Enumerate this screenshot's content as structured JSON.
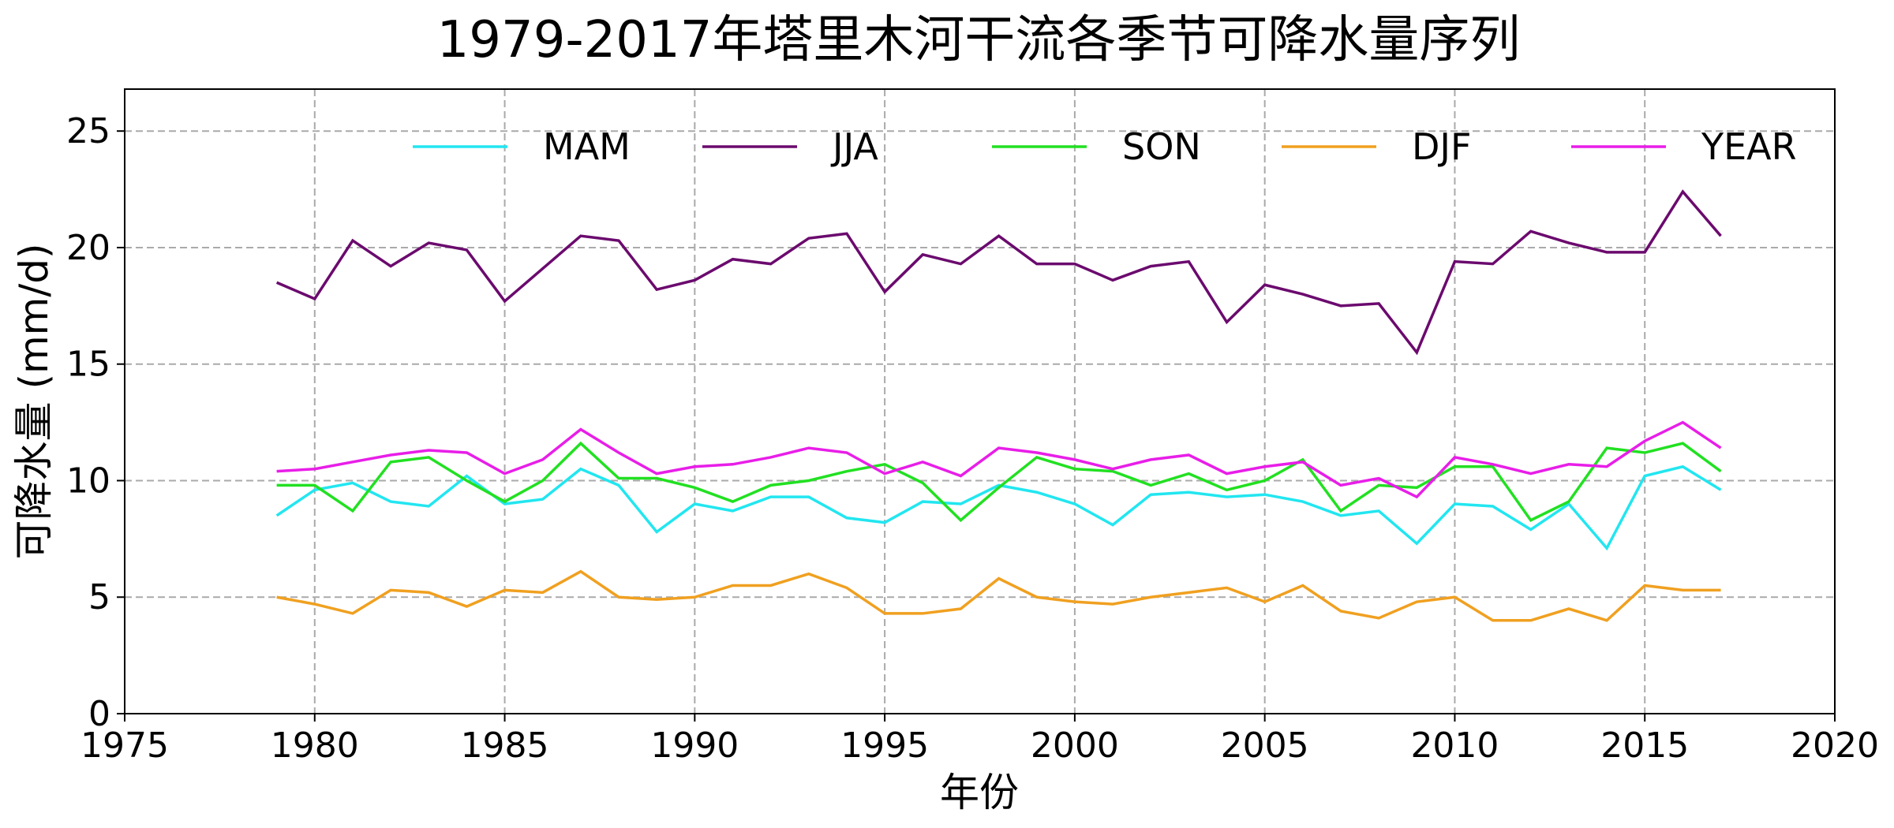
{
  "chart_data": {
    "type": "line",
    "title": "1979-2017年塔里木河干流各季节可降水量序列",
    "xlabel": "年份",
    "ylabel": "可降水量 (mm/d)",
    "xlim": [
      1975,
      2020
    ],
    "ylim": [
      0,
      26.8
    ],
    "xticks": [
      1975,
      1980,
      1985,
      1990,
      1995,
      2000,
      2005,
      2010,
      2015,
      2020
    ],
    "yticks": [
      0,
      5,
      10,
      15,
      20,
      25
    ],
    "grid": true,
    "legend_position": "top",
    "x": [
      1979,
      1980,
      1981,
      1982,
      1983,
      1984,
      1985,
      1986,
      1987,
      1988,
      1989,
      1990,
      1991,
      1992,
      1993,
      1994,
      1995,
      1996,
      1997,
      1998,
      1999,
      2000,
      2001,
      2002,
      2003,
      2004,
      2005,
      2006,
      2007,
      2008,
      2009,
      2010,
      2011,
      2012,
      2013,
      2014,
      2015,
      2016,
      2017
    ],
    "series": [
      {
        "name": "MAM",
        "color": "#22e6f0",
        "values": [
          8.5,
          9.6,
          9.9,
          9.1,
          8.9,
          10.2,
          9.0,
          9.2,
          10.5,
          9.8,
          7.8,
          9.0,
          8.7,
          9.3,
          9.3,
          8.4,
          8.2,
          9.1,
          9.0,
          9.8,
          9.5,
          9.0,
          8.1,
          9.4,
          9.5,
          9.3,
          9.4,
          9.1,
          8.5,
          8.7,
          7.3,
          9.0,
          8.9,
          7.9,
          9.0,
          7.1,
          10.2,
          10.6,
          9.6
        ]
      },
      {
        "name": "JJA",
        "color": "#6b0a6e",
        "values": [
          18.5,
          17.8,
          20.3,
          19.2,
          20.2,
          19.9,
          17.7,
          19.1,
          20.5,
          20.3,
          18.2,
          18.6,
          19.5,
          19.3,
          20.4,
          20.6,
          18.1,
          19.7,
          19.3,
          20.5,
          19.3,
          19.3,
          18.6,
          19.2,
          19.4,
          16.8,
          18.4,
          18.0,
          17.5,
          17.6,
          15.5,
          19.4,
          19.3,
          20.7,
          20.2,
          19.8,
          19.8,
          22.4,
          20.5
        ]
      },
      {
        "name": "SON",
        "color": "#22e022",
        "values": [
          9.8,
          9.8,
          8.7,
          10.8,
          11.0,
          10.0,
          9.1,
          10.0,
          11.6,
          10.1,
          10.1,
          9.7,
          9.1,
          9.8,
          10.0,
          10.4,
          10.7,
          9.9,
          8.3,
          9.7,
          11.0,
          10.5,
          10.4,
          9.8,
          10.3,
          9.6,
          10.0,
          10.9,
          8.7,
          9.8,
          9.7,
          10.6,
          10.6,
          8.3,
          9.1,
          11.4,
          11.2,
          11.6,
          10.4
        ]
      },
      {
        "name": "DJF",
        "color": "#f0a020",
        "values": [
          5.0,
          4.7,
          4.3,
          5.3,
          5.2,
          4.6,
          5.3,
          5.2,
          6.1,
          5.0,
          4.9,
          5.0,
          5.5,
          5.5,
          6.0,
          5.4,
          4.3,
          4.3,
          4.5,
          5.8,
          5.0,
          4.8,
          4.7,
          5.0,
          5.2,
          5.4,
          4.8,
          5.5,
          4.4,
          4.1,
          4.8,
          5.0,
          4.0,
          4.0,
          4.5,
          4.0,
          5.5,
          5.3,
          5.3
        ]
      },
      {
        "name": "YEAR",
        "color": "#e81ee8",
        "values": [
          10.4,
          10.5,
          10.8,
          11.1,
          11.3,
          11.2,
          10.3,
          10.9,
          12.2,
          11.2,
          10.3,
          10.6,
          10.7,
          11.0,
          11.4,
          11.2,
          10.3,
          10.8,
          10.2,
          11.4,
          11.2,
          10.9,
          10.5,
          10.9,
          11.1,
          10.3,
          10.6,
          10.8,
          9.8,
          10.1,
          9.3,
          11.0,
          10.7,
          10.3,
          10.7,
          10.6,
          11.7,
          12.5,
          11.4
        ]
      }
    ]
  }
}
